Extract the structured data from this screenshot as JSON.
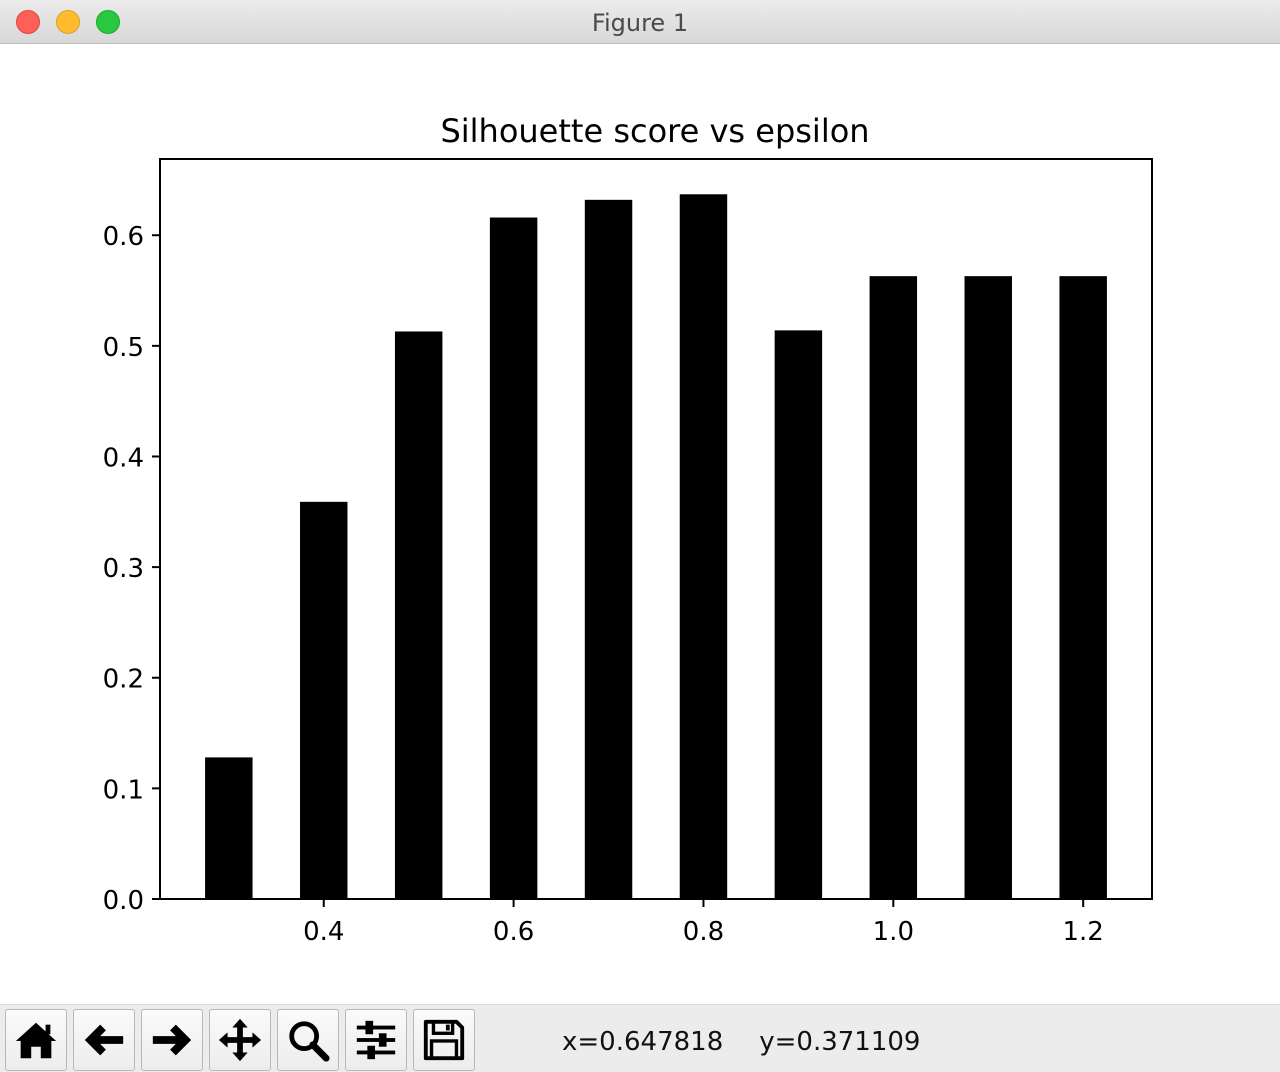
{
  "window": {
    "title": "Figure 1"
  },
  "toolbar": {
    "buttons": [
      {
        "name": "home-button",
        "icon": "home-icon"
      },
      {
        "name": "back-button",
        "icon": "arrow-left-icon"
      },
      {
        "name": "forward-button",
        "icon": "arrow-right-icon"
      },
      {
        "name": "pan-button",
        "icon": "move-icon"
      },
      {
        "name": "zoom-button",
        "icon": "search-icon"
      },
      {
        "name": "configure-subplots-button",
        "icon": "sliders-icon"
      },
      {
        "name": "save-button",
        "icon": "floppy-disk-icon"
      }
    ],
    "x_readout": "x=0.647818",
    "y_readout": "y=0.371109"
  },
  "chart_data": {
    "type": "bar",
    "title": "Silhouette score vs epsilon",
    "xlabel": "",
    "ylabel": "",
    "x": [
      0.3,
      0.4,
      0.5,
      0.6,
      0.7,
      0.8,
      0.9,
      1.0,
      1.1,
      1.2
    ],
    "values": [
      0.128,
      0.359,
      0.513,
      0.616,
      0.632,
      0.637,
      0.514,
      0.563,
      0.563,
      0.563
    ],
    "bar_width": 0.05,
    "xlim": [
      0.2275,
      1.2725
    ],
    "ylim": [
      0,
      0.6689
    ],
    "xticks": [
      0.4,
      0.6,
      0.8,
      1.0,
      1.2
    ],
    "xtick_labels": [
      "0.4",
      "0.6",
      "0.8",
      "1.0",
      "1.2"
    ],
    "yticks": [
      0.0,
      0.1,
      0.2,
      0.3,
      0.4,
      0.5,
      0.6
    ],
    "ytick_labels": [
      "0.0",
      "0.1",
      "0.2",
      "0.3",
      "0.4",
      "0.5",
      "0.6"
    ],
    "bar_color": "#000000",
    "grid": false,
    "legend": "none"
  }
}
